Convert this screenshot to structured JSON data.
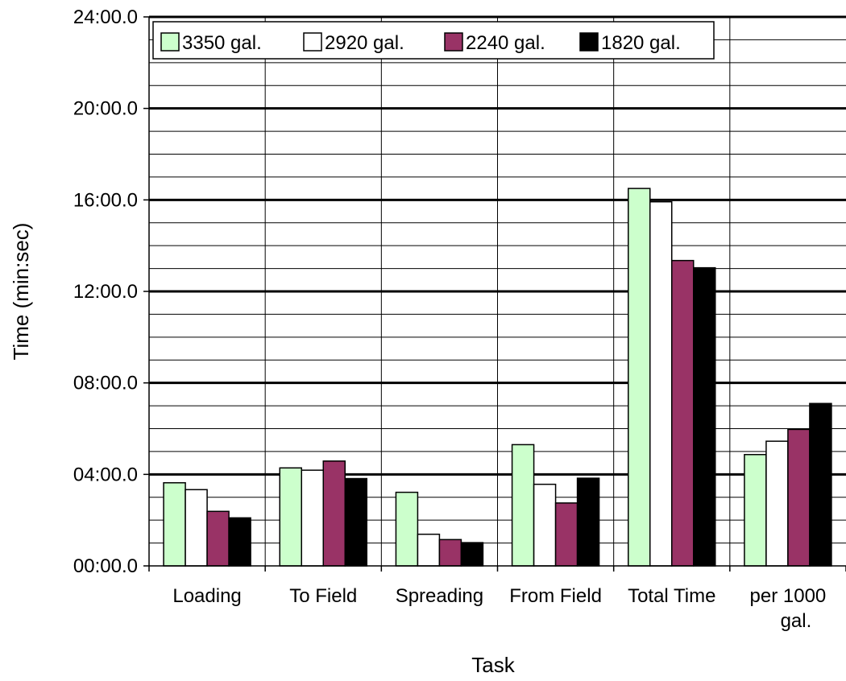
{
  "chart_data": {
    "type": "bar",
    "title": "",
    "xlabel": "Task",
    "ylabel": "Time (min:sec)",
    "ylim_seconds": [
      0,
      1440
    ],
    "y_ticks": [
      {
        "value": 0,
        "label": "00:00.0"
      },
      {
        "value": 240,
        "label": "04:00.0"
      },
      {
        "value": 480,
        "label": "08:00.0"
      },
      {
        "value": 720,
        "label": "12:00.0"
      },
      {
        "value": 960,
        "label": "16:00.0"
      },
      {
        "value": 1200,
        "label": "20:00.0"
      },
      {
        "value": 1440,
        "label": "24:00.0"
      }
    ],
    "minor_grid_step_seconds": 60,
    "grid": true,
    "legend_position": "top",
    "categories": [
      [
        "Loading"
      ],
      [
        "To Field"
      ],
      [
        "Spreading"
      ],
      [
        "From Field"
      ],
      [
        "Total Time"
      ],
      [
        "per 1000",
        "gal."
      ]
    ],
    "series": [
      {
        "name": "3350 gal.",
        "color": "#ccffcc",
        "values": [
          218,
          257,
          193,
          318,
          990,
          292
        ]
      },
      {
        "name": "2920 gal.",
        "color": "#ffffff",
        "values": [
          200,
          251,
          83,
          214,
          955,
          327
        ]
      },
      {
        "name": "2240 gal.",
        "color": "#993366",
        "values": [
          143,
          275,
          69,
          165,
          801,
          358
        ]
      },
      {
        "name": "1820 gal.",
        "color": "#000000",
        "values": [
          126,
          229,
          61,
          230,
          782,
          426
        ]
      }
    ]
  }
}
